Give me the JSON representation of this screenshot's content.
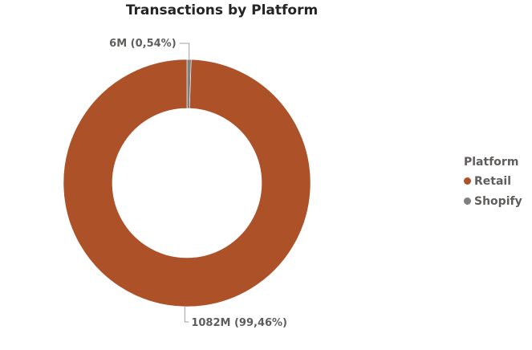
{
  "chart_data": {
    "type": "donut",
    "title": "Transactions by Platform",
    "legend": {
      "title": "Platform",
      "position": "right"
    },
    "slices": [
      {
        "name": "Retail",
        "value": 1082,
        "label": "1082M (99,46%)",
        "color": "#ad5129"
      },
      {
        "name": "Shopify",
        "value": 6,
        "label": "6M (0,54%)",
        "color": "#808080"
      }
    ]
  }
}
